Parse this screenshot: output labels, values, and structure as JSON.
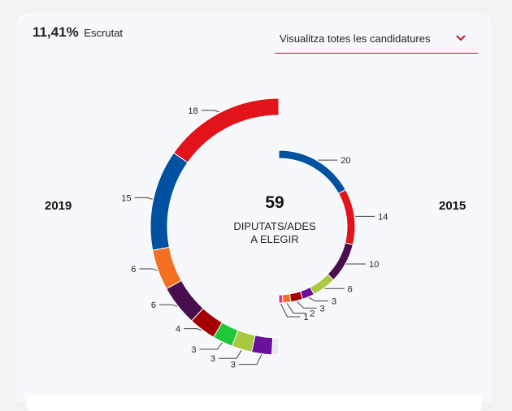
{
  "header": {
    "scrutiny_pct": "11,41%",
    "scrutiny_label": "Escrutat",
    "dropdown_label": "Visualitza totes les candidatures",
    "dropdown_icon": "chevron-down-icon",
    "accent_color": "#c8102e"
  },
  "center": {
    "seats_total": "59",
    "line1": "DIPUTATS/ADES",
    "line2": "A ELEGIR"
  },
  "years": {
    "left": "2019",
    "right": "2015"
  },
  "chart_data": [
    {
      "type": "donut-half",
      "side": "left",
      "year_label": "2019",
      "total": 59,
      "segments": [
        {
          "value": 18,
          "color": "#e3131b"
        },
        {
          "value": 15,
          "color": "#0052a0"
        },
        {
          "value": 6,
          "color": "#f46f22"
        },
        {
          "value": 6,
          "color": "#4a0e4e"
        },
        {
          "value": 4,
          "color": "#a50000"
        },
        {
          "value": 3,
          "color": "#1ec738"
        },
        {
          "value": 3,
          "color": "#a8c940"
        },
        {
          "value": 3,
          "color": "#6b109a"
        },
        {
          "value": 1,
          "color": "#e8e8ee"
        }
      ]
    },
    {
      "type": "donut-half",
      "side": "right",
      "year_label": "2015",
      "total": 59,
      "segments": [
        {
          "value": 20,
          "color": "#0052a0"
        },
        {
          "value": 14,
          "color": "#e3131b"
        },
        {
          "value": 10,
          "color": "#4a0e4e"
        },
        {
          "value": 6,
          "color": "#a8c940"
        },
        {
          "value": 3,
          "color": "#6b109a"
        },
        {
          "value": 3,
          "color": "#a50000"
        },
        {
          "value": 2,
          "color": "#f46f22"
        },
        {
          "value": 1,
          "color": "#e8348c"
        }
      ]
    }
  ]
}
